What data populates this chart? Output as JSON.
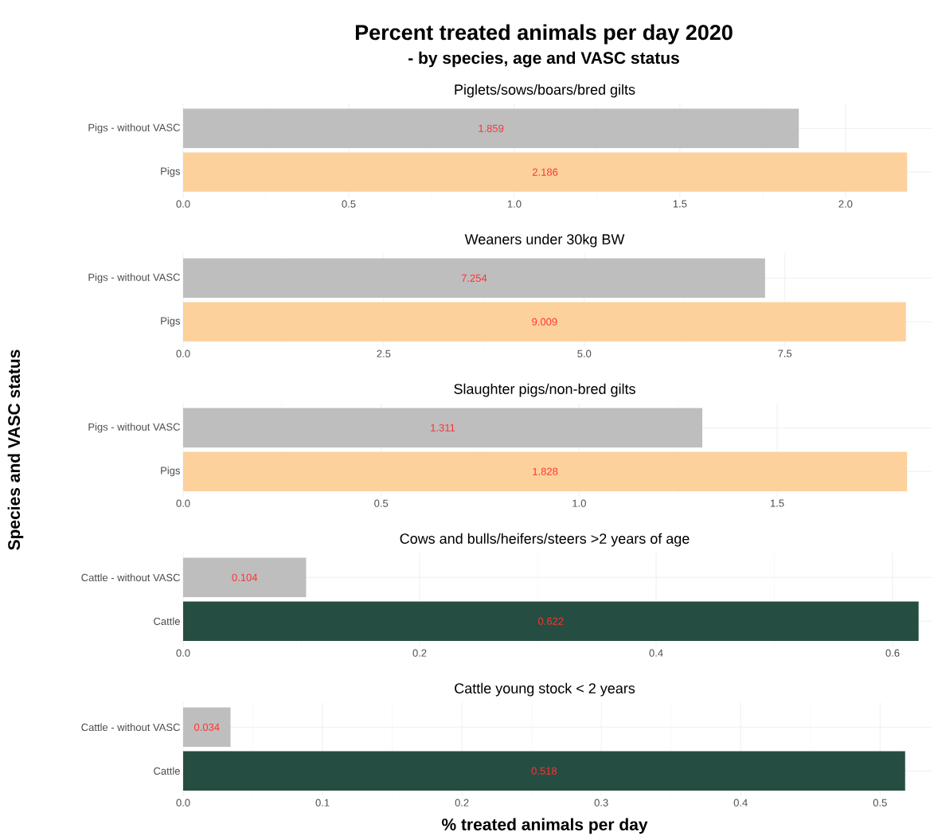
{
  "chart_data": [
    {
      "type": "other",
      "title": "Percent treated animals per day 2020",
      "subtitle": "- by species, age and VASC status"
    },
    {
      "type": "bar",
      "orientation": "horizontal",
      "title": "Piglets/sows/boars/bred gilts",
      "categories": [
        "Pigs - without VASC",
        "Pigs"
      ],
      "values": [
        1.859,
        2.186
      ],
      "colors": [
        "#bebebe",
        "#fcd19c"
      ],
      "data_labels": true,
      "grid": true,
      "xlim": [
        0,
        2.26
      ],
      "xticks": [
        {
          "value": 0,
          "label": "0.0"
        },
        {
          "value": 0.5,
          "label": "0.5"
        },
        {
          "value": 1,
          "label": "1.0"
        },
        {
          "value": 1.5,
          "label": "1.5"
        },
        {
          "value": 2,
          "label": "2.0"
        }
      ]
    },
    {
      "type": "bar",
      "orientation": "horizontal",
      "title": "Weaners under 30kg BW",
      "categories": [
        "Pigs - without VASC",
        "Pigs"
      ],
      "values": [
        7.254,
        9.009
      ],
      "colors": [
        "#bebebe",
        "#fcd19c"
      ],
      "data_labels": true,
      "grid": true,
      "xlim": [
        0,
        9.33
      ],
      "xticks": [
        {
          "value": 0,
          "label": "0.0"
        },
        {
          "value": 2.5,
          "label": "2.5"
        },
        {
          "value": 5,
          "label": "5.0"
        },
        {
          "value": 7.5,
          "label": "7.5"
        }
      ]
    },
    {
      "type": "bar",
      "orientation": "horizontal",
      "title": "Slaughter pigs/non-bred gilts",
      "ylabel": "Species and VASC status",
      "categories": [
        "Pigs - without VASC",
        "Pigs"
      ],
      "values": [
        1.311,
        1.828
      ],
      "colors": [
        "#bebebe",
        "#fcd19c"
      ],
      "data_labels": true,
      "grid": true,
      "xlim": [
        0,
        1.89
      ],
      "xticks": [
        {
          "value": 0,
          "label": "0.0"
        },
        {
          "value": 0.5,
          "label": "0.5"
        },
        {
          "value": 1,
          "label": "1.0"
        },
        {
          "value": 1.5,
          "label": "1.5"
        }
      ]
    },
    {
      "type": "bar",
      "orientation": "horizontal",
      "title": "Cows and bulls/heifers/steers >2 years of age",
      "categories": [
        "Cattle - without VASC",
        "Cattle"
      ],
      "values": [
        0.104,
        0.622
      ],
      "colors": [
        "#bebebe",
        "#264d42"
      ],
      "data_labels": true,
      "grid": true,
      "xlim": [
        0,
        0.633
      ],
      "xticks": [
        {
          "value": 0,
          "label": "0.0"
        },
        {
          "value": 0.2,
          "label": "0.2"
        },
        {
          "value": 0.4,
          "label": "0.4"
        },
        {
          "value": 0.6,
          "label": "0.6"
        }
      ]
    },
    {
      "type": "bar",
      "orientation": "horizontal",
      "title": "Cattle young stock < 2 years",
      "xlabel": "% treated animals per day",
      "categories": [
        "Cattle - without VASC",
        "Cattle"
      ],
      "values": [
        0.034,
        0.518
      ],
      "colors": [
        "#bebebe",
        "#264d42"
      ],
      "data_labels": true,
      "grid": true,
      "xlim": [
        0,
        0.537
      ],
      "xticks": [
        {
          "value": 0,
          "label": "0.0"
        },
        {
          "value": 0.1,
          "label": "0.1"
        },
        {
          "value": 0.2,
          "label": "0.2"
        },
        {
          "value": 0.3,
          "label": "0.3"
        },
        {
          "value": 0.4,
          "label": "0.4"
        },
        {
          "value": 0.5,
          "label": "0.5"
        }
      ]
    }
  ]
}
